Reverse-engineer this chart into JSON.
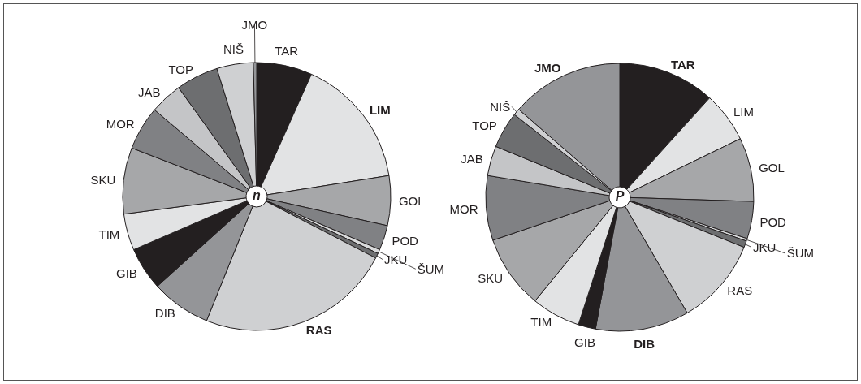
{
  "chart_data": [
    {
      "type": "pie",
      "title": "n",
      "categories": [
        "TAR",
        "LIM",
        "GOL",
        "POD",
        "ŠUM",
        "JKU",
        "RAS",
        "DIB",
        "GIB",
        "TIM",
        "SKU",
        "MOR",
        "JAB",
        "TOP",
        "NIŠ",
        "JMO"
      ],
      "values": [
        6.7,
        15.8,
        6.0,
        3.0,
        0.5,
        0.6,
        23.5,
        7.2,
        5.2,
        4.4,
        8.0,
        5.3,
        3.9,
        5.1,
        4.4,
        0.4
      ],
      "colors": [
        "#231f20",
        "#e2e3e4",
        "#a6a7a9",
        "#808184",
        "#d9dadb",
        "#6d6e70",
        "#cfd0d2",
        "#949598",
        "#231f20",
        "#e2e3e4",
        "#a6a7a9",
        "#808184",
        "#c4c5c7",
        "#6d6e70",
        "#cfd0d2",
        "#949598"
      ],
      "legend": false
    },
    {
      "type": "pie",
      "title": "P",
      "categories": [
        "TAR",
        "LIM",
        "GOL",
        "POD",
        "ŠUM",
        "JKU",
        "RAS",
        "DIB",
        "GIB",
        "TIM",
        "SKU",
        "MOR",
        "JAB",
        "TOP",
        "NIŠ",
        "JMO"
      ],
      "values": [
        11.7,
        6.1,
        7.7,
        4.5,
        0.3,
        0.8,
        10.5,
        11.3,
        2.1,
        5.9,
        8.9,
        7.8,
        3.6,
        4.4,
        0.8,
        13.6
      ],
      "colors": [
        "#231f20",
        "#e2e3e4",
        "#a6a7a9",
        "#808184",
        "#d9dadb",
        "#6d6e70",
        "#cfd0d2",
        "#949598",
        "#231f20",
        "#e2e3e4",
        "#a6a7a9",
        "#808184",
        "#c4c5c7",
        "#6d6e70",
        "#cfd0d2",
        "#949598"
      ],
      "legend": false
    }
  ]
}
